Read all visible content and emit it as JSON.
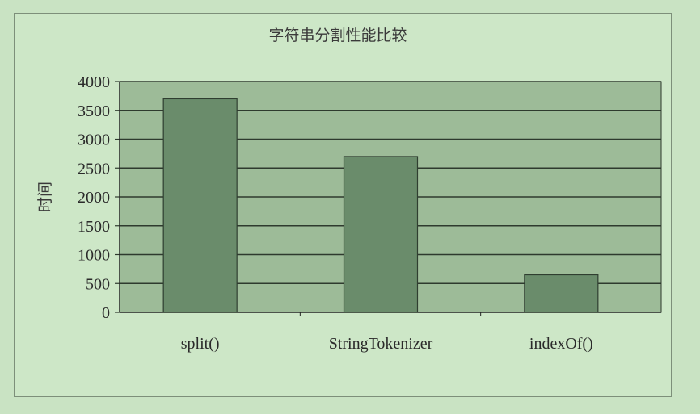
{
  "chart_data": {
    "type": "bar",
    "title": "字符串分割性能比较",
    "xlabel": "",
    "ylabel": "时间",
    "categories": [
      "split()",
      "StringTokenizer",
      "indexOf()"
    ],
    "values": [
      3700,
      2700,
      650
    ],
    "ylim": [
      0,
      4000
    ],
    "yticks": [
      0,
      500,
      1000,
      1500,
      2000,
      2500,
      3000,
      3500,
      4000
    ],
    "grid": true,
    "legend": "none",
    "colors": {
      "plot_background": "#9dbb98",
      "bar": "#6a8c6b",
      "bar_edge": "#2f3e30",
      "gridline": "#2e3a2e"
    }
  }
}
